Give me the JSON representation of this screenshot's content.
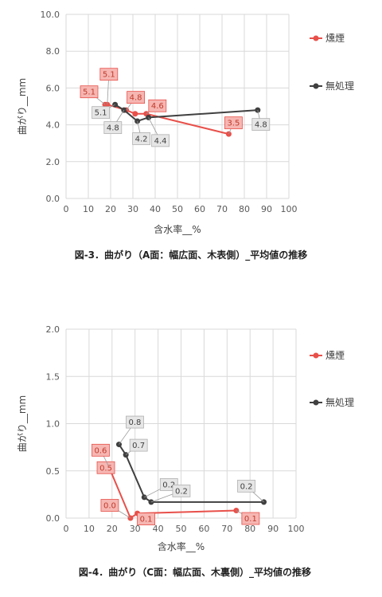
{
  "chart_data": [
    {
      "type": "line",
      "caption": "図-3．曲がり（A面：幅広面、木表側）_平均値の推移",
      "xlabel": "含水率__%",
      "ylabel": "曲がり__mm",
      "xlim": [
        0,
        100
      ],
      "ylim": [
        0,
        10
      ],
      "x_ticks": [
        "0",
        "10",
        "20",
        "30",
        "40",
        "50",
        "60",
        "70",
        "80",
        "90",
        "100"
      ],
      "y_ticks": [
        "0.0",
        "2.0",
        "4.0",
        "6.0",
        "8.0",
        "10.0"
      ],
      "x_tick_values": [
        0,
        10,
        20,
        30,
        40,
        50,
        60,
        70,
        80,
        90,
        100
      ],
      "y_tick_values": [
        0,
        2,
        4,
        6,
        8,
        10
      ],
      "grid": true,
      "legend": "right",
      "series": [
        {
          "name": "燻煙",
          "color": "#e8504a",
          "x": [
            17.5,
            18.5,
            27,
            31,
            36,
            73
          ],
          "y": [
            5.1,
            5.1,
            4.8,
            4.6,
            4.6,
            3.5
          ],
          "labels": [
            "5.1",
            "5.1",
            "4.8",
            "",
            "4.6",
            "3.5"
          ]
        },
        {
          "name": "無処理",
          "color": "#404040",
          "x": [
            22,
            26,
            32,
            37,
            86
          ],
          "y": [
            5.1,
            4.8,
            4.2,
            4.4,
            4.8
          ],
          "labels": [
            "5.1",
            "4.8",
            "4.2",
            "4.4",
            "4.8"
          ]
        }
      ]
    },
    {
      "type": "line",
      "caption": "図-4．曲がり（C面：幅広面、木裏側）_平均値の推移",
      "xlabel": "含水率__%",
      "ylabel": "曲がり__mm",
      "xlim": [
        0,
        100
      ],
      "ylim": [
        0,
        2
      ],
      "x_ticks": [
        "0",
        "10",
        "20",
        "30",
        "40",
        "50",
        "60",
        "70",
        "80",
        "90",
        "100"
      ],
      "y_ticks": [
        "0.0",
        "0.5",
        "1.0",
        "1.5",
        "2.0"
      ],
      "x_tick_values": [
        0,
        10,
        20,
        30,
        40,
        50,
        60,
        70,
        80,
        90,
        100
      ],
      "y_tick_values": [
        0,
        0.5,
        1.0,
        1.5,
        2.0
      ],
      "grid": true,
      "legend": "right",
      "series": [
        {
          "name": "燻煙",
          "color": "#e8504a",
          "x": [
            18,
            18.5,
            28,
            31,
            74
          ],
          "y": [
            0.5,
            0.55,
            0.0,
            0.05,
            0.08
          ],
          "labels": [
            "0.5",
            "0.6",
            "0.0",
            "0.1",
            "0.1"
          ]
        },
        {
          "name": "無処理",
          "color": "#404040",
          "x": [
            23,
            26,
            34,
            37,
            86
          ],
          "y": [
            0.78,
            0.67,
            0.22,
            0.17,
            0.17
          ],
          "labels": [
            "0.8",
            "0.7",
            "0.2",
            "0.2",
            "0.2"
          ]
        }
      ]
    }
  ]
}
